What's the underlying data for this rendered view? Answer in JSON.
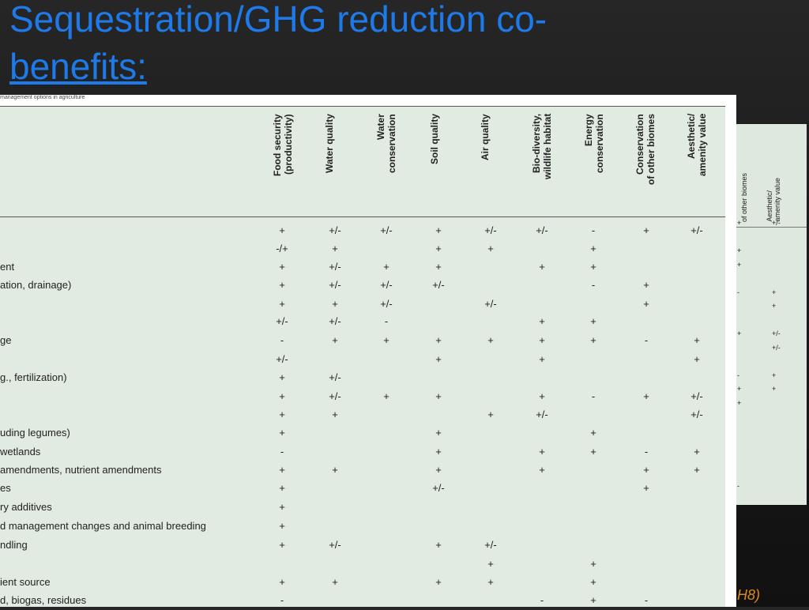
{
  "title_line1": "Sequestration/GHG reduction co-",
  "title_line2": "benefits:",
  "caption": "management options in agriculture",
  "footnote": "H8)",
  "columns": [
    "Food security\n(productivity)",
    "Water quality",
    "Water\nconservation",
    "Soil quality",
    "Air quality",
    "Bio-diversity,\nwildlife habitat",
    "Energy\nconservation",
    "Conservation\nof other biomes",
    "Aesthetic/\namenity value"
  ],
  "rows": [
    {
      "label": "",
      "values": [
        "+",
        "+/-",
        "+/-",
        "+",
        "+/-",
        "+/-",
        "-",
        "+",
        "+/-"
      ]
    },
    {
      "label": "",
      "values": [
        "-/+",
        "+",
        "",
        "+",
        "+",
        "",
        "+",
        "",
        ""
      ]
    },
    {
      "label": "ent",
      "values": [
        "+",
        "+/-",
        "+",
        "+",
        "",
        "+",
        "+",
        "",
        ""
      ]
    },
    {
      "label": "ation, drainage)",
      "values": [
        "+",
        "+/-",
        "+/-",
        "+/-",
        "",
        "",
        "-",
        "+",
        ""
      ]
    },
    {
      "label": "",
      "values": [
        "+",
        "+",
        "+/-",
        "",
        "+/-",
        "",
        "",
        "+",
        ""
      ]
    },
    {
      "label": "",
      "values": [
        "+/-",
        "+/-",
        "-",
        "",
        "",
        "+",
        "+",
        "",
        ""
      ]
    },
    {
      "label": "ge",
      "values": [
        "-",
        "+",
        "+",
        "+",
        "+",
        "+",
        "+",
        "-",
        "+"
      ]
    },
    {
      "label": "",
      "values": [
        "+/-",
        "",
        "",
        "+",
        "",
        "+",
        "",
        "",
        "+"
      ]
    },
    {
      "label": "g., fertilization)",
      "values": [
        "+",
        "+/-",
        "",
        "",
        "",
        "",
        "",
        "",
        ""
      ]
    },
    {
      "label": "",
      "values": [
        "+",
        "+/-",
        "+",
        "+",
        "",
        "+",
        "-",
        "+",
        "+/-"
      ]
    },
    {
      "label": "",
      "values": [
        "+",
        "+",
        "",
        "",
        "+",
        "+/-",
        "",
        "",
        "+/-"
      ]
    },
    {
      "label": "uding legumes)",
      "values": [
        "+",
        "",
        "",
        "+",
        "",
        "",
        "+",
        "",
        ""
      ]
    },
    {
      "label": " wetlands",
      "values": [
        "-",
        "",
        "",
        "+",
        "",
        "+",
        "+",
        "-",
        "+"
      ]
    },
    {
      "label": "amendments, nutrient amendments",
      "values": [
        "+",
        "+",
        "",
        "+",
        "",
        "+",
        "",
        "+",
        "+"
      ]
    },
    {
      "label": "es",
      "values": [
        "+",
        "",
        "",
        "+/-",
        "",
        "",
        "",
        "+",
        ""
      ]
    },
    {
      "label": "ry additives",
      "values": [
        "+",
        "",
        "",
        "",
        "",
        "",
        "",
        "",
        ""
      ]
    },
    {
      "label": "d management changes and animal breeding",
      "values": [
        "+",
        "",
        "",
        "",
        "",
        "",
        "",
        "",
        ""
      ]
    },
    {
      "label": "ndling",
      "values": [
        "+",
        "+/-",
        "",
        "+",
        "+/-",
        "",
        "",
        "",
        ""
      ]
    },
    {
      "label": "",
      "values": [
        "",
        "",
        "",
        "",
        "+",
        "",
        "+",
        "",
        ""
      ]
    },
    {
      "label": "ient source",
      "values": [
        "+",
        "+",
        "",
        "+",
        "+",
        "",
        "+",
        "",
        ""
      ]
    },
    {
      "label": "d, biogas, residues",
      "values": [
        "-",
        "",
        "",
        "",
        "",
        "-",
        "+",
        "-",
        ""
      ]
    }
  ],
  "back_columns": [
    "of other biomes",
    "Aesthetic/\namenity value"
  ],
  "back_cells": [
    {
      "text": "+",
      "col": 0,
      "row": 0
    },
    {
      "text": "+/-",
      "col": 1,
      "row": 0
    },
    {
      "text": "+",
      "col": 0,
      "row": 2
    },
    {
      "text": "+",
      "col": 0,
      "row": 3
    },
    {
      "text": "-",
      "col": 0,
      "row": 5
    },
    {
      "text": "+",
      "col": 1,
      "row": 5
    },
    {
      "text": "+",
      "col": 1,
      "row": 6
    },
    {
      "text": "+",
      "col": 0,
      "row": 8
    },
    {
      "text": "+/-",
      "col": 1,
      "row": 8
    },
    {
      "text": "+/-",
      "col": 1,
      "row": 9
    },
    {
      "text": "-",
      "col": 0,
      "row": 11
    },
    {
      "text": "+",
      "col": 1,
      "row": 11
    },
    {
      "text": "+",
      "col": 0,
      "row": 12
    },
    {
      "text": "+",
      "col": 1,
      "row": 12
    },
    {
      "text": "+",
      "col": 0,
      "row": 13
    },
    {
      "text": "-",
      "col": 0,
      "row": 19
    }
  ]
}
